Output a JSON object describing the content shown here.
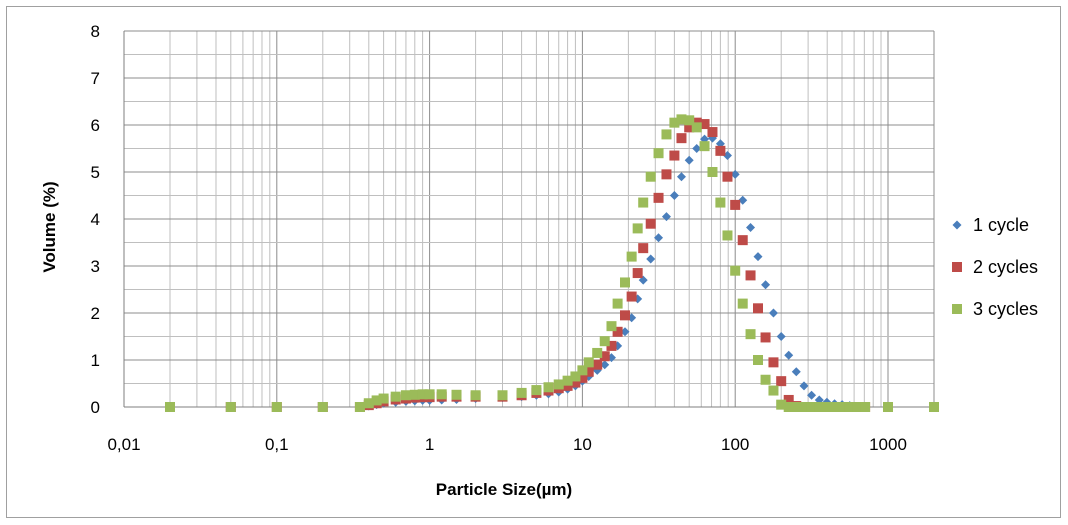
{
  "chart_data": {
    "type": "scatter",
    "title": "",
    "xlabel": "Particle Size(µm)",
    "ylabel": "Volume (%)",
    "x_scale": "log",
    "xlim": [
      0.01,
      2000
    ],
    "ylim": [
      0,
      8
    ],
    "x_ticks": [
      "0,01",
      "0,1",
      "1",
      "10",
      "100",
      "1000"
    ],
    "y_ticks": [
      "0",
      "1",
      "2",
      "3",
      "4",
      "5",
      "6",
      "7",
      "8"
    ],
    "grid": true,
    "legend_position": "right",
    "series": [
      {
        "name": "1 cycle",
        "color": "#4a7ebb",
        "marker": "diamond",
        "x": [
          0.02,
          0.05,
          0.1,
          0.2,
          0.35,
          0.4,
          0.45,
          0.5,
          0.6,
          0.7,
          0.8,
          0.9,
          1.0,
          1.2,
          1.5,
          2,
          3,
          4,
          5,
          6,
          7,
          8,
          9,
          10,
          11,
          12.5,
          14,
          15.5,
          17,
          19,
          21,
          23,
          25,
          28,
          31.5,
          35.5,
          40,
          44.5,
          50,
          56,
          63,
          71,
          80,
          89,
          100,
          112,
          126,
          141,
          158,
          178,
          200,
          224,
          251,
          282,
          316,
          355,
          398,
          447,
          501,
          562,
          631,
          708,
          1000,
          2000
        ],
        "y": [
          0,
          0,
          0,
          0,
          0,
          0.02,
          0.05,
          0.08,
          0.1,
          0.12,
          0.13,
          0.14,
          0.14,
          0.15,
          0.16,
          0.18,
          0.2,
          0.22,
          0.25,
          0.28,
          0.32,
          0.38,
          0.45,
          0.55,
          0.65,
          0.78,
          0.9,
          1.05,
          1.3,
          1.6,
          1.9,
          2.3,
          2.7,
          3.15,
          3.6,
          4.05,
          4.5,
          4.9,
          5.25,
          5.5,
          5.7,
          5.72,
          5.6,
          5.35,
          4.95,
          4.4,
          3.82,
          3.2,
          2.6,
          2.0,
          1.5,
          1.1,
          0.75,
          0.45,
          0.25,
          0.15,
          0.1,
          0.07,
          0.05,
          0.03,
          0.01,
          0,
          0,
          0
        ]
      },
      {
        "name": "2 cycles",
        "color": "#be4b48",
        "marker": "square",
        "x": [
          0.02,
          0.05,
          0.1,
          0.2,
          0.35,
          0.4,
          0.45,
          0.5,
          0.6,
          0.7,
          0.8,
          0.9,
          1.0,
          1.2,
          1.5,
          2,
          3,
          4,
          5,
          6,
          7,
          8,
          9,
          10,
          11,
          12.5,
          14,
          15.5,
          17,
          19,
          21,
          23,
          25,
          28,
          31.5,
          35.5,
          40,
          44.5,
          50,
          56,
          63,
          71,
          80,
          89,
          100,
          112,
          126,
          141,
          158,
          178,
          200,
          224,
          251,
          282,
          316,
          355,
          398,
          447,
          501,
          562,
          631,
          708,
          1000,
          2000
        ],
        "y": [
          0,
          0,
          0,
          0,
          0,
          0.04,
          0.08,
          0.12,
          0.16,
          0.18,
          0.2,
          0.21,
          0.21,
          0.22,
          0.22,
          0.22,
          0.22,
          0.25,
          0.3,
          0.35,
          0.4,
          0.45,
          0.52,
          0.62,
          0.75,
          0.9,
          1.08,
          1.3,
          1.6,
          1.95,
          2.35,
          2.85,
          3.38,
          3.9,
          4.45,
          4.95,
          5.35,
          5.72,
          5.95,
          6.05,
          6.02,
          5.85,
          5.45,
          4.9,
          4.3,
          3.55,
          2.8,
          2.1,
          1.48,
          0.95,
          0.55,
          0.15,
          0.02,
          0,
          0,
          0,
          0,
          0,
          0,
          0,
          0,
          0,
          0,
          0
        ]
      },
      {
        "name": "3 cycles",
        "color": "#9bbb59",
        "marker": "square",
        "x": [
          0.02,
          0.05,
          0.1,
          0.2,
          0.35,
          0.4,
          0.45,
          0.5,
          0.6,
          0.7,
          0.8,
          0.9,
          1.0,
          1.2,
          1.5,
          2,
          3,
          4,
          5,
          6,
          7,
          8,
          9,
          10,
          11,
          12.5,
          14,
          15.5,
          17,
          19,
          21,
          23,
          25,
          28,
          31.5,
          35.5,
          40,
          44.5,
          50,
          56,
          63,
          71,
          80,
          89,
          100,
          112,
          126,
          141,
          158,
          178,
          200,
          224,
          251,
          282,
          316,
          355,
          398,
          447,
          501,
          562,
          631,
          708,
          1000,
          2000
        ],
        "y": [
          0,
          0,
          0,
          0,
          0,
          0.08,
          0.14,
          0.18,
          0.22,
          0.25,
          0.26,
          0.27,
          0.27,
          0.27,
          0.26,
          0.25,
          0.25,
          0.3,
          0.36,
          0.42,
          0.48,
          0.56,
          0.65,
          0.78,
          0.95,
          1.15,
          1.4,
          1.72,
          2.2,
          2.65,
          3.2,
          3.8,
          4.35,
          4.9,
          5.4,
          5.8,
          6.05,
          6.12,
          6.1,
          5.95,
          5.55,
          5.0,
          4.35,
          3.65,
          2.9,
          2.2,
          1.55,
          1.0,
          0.58,
          0.35,
          0.05,
          0,
          0,
          0,
          0,
          0,
          0,
          0,
          0,
          0,
          0,
          0,
          0,
          0
        ]
      }
    ]
  }
}
